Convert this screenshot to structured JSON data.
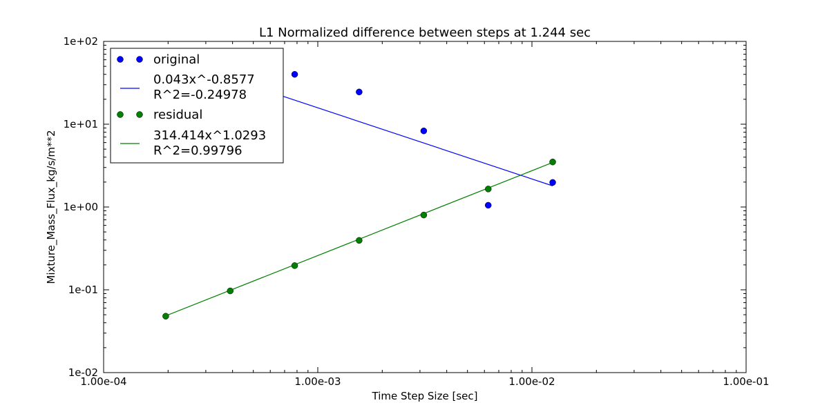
{
  "chart_data": {
    "type": "scatter",
    "title": "L1 Normalized difference between steps at 1.244 sec",
    "xlabel": "Time Step Size [sec]",
    "ylabel": "Mixture_Mass_Flux_kg/s/m**2",
    "xscale": "log",
    "yscale": "log",
    "xlim": [
      0.0001,
      0.1
    ],
    "ylim": [
      0.01,
      100
    ],
    "grid": false,
    "legend_position": "top-left",
    "xticks": [
      {
        "value": 0.0001,
        "label": "1.00e-04"
      },
      {
        "value": 0.001,
        "label": "1.00e-03"
      },
      {
        "value": 0.01,
        "label": "1.00e-02"
      },
      {
        "value": 0.1,
        "label": "1.00e-01"
      }
    ],
    "yticks": [
      {
        "value": 0.01,
        "label": "1e-02"
      },
      {
        "value": 0.1,
        "label": "1e-01"
      },
      {
        "value": 1,
        "label": "1e+00"
      },
      {
        "value": 10,
        "label": "1e+01"
      },
      {
        "value": 100,
        "label": "1e+02"
      }
    ],
    "series": [
      {
        "name": "original",
        "kind": "points",
        "color": "#0000ff",
        "x": [
          0.000195,
          0.00039,
          0.00078,
          0.00156,
          0.003125,
          0.00625,
          0.0125
        ],
        "y": [
          75,
          60,
          40,
          24.5,
          8.3,
          1.05,
          1.98
        ]
      },
      {
        "name": "0.043x^-0.8577\nR^2=-0.24978",
        "kind": "line",
        "color": "#0000ff",
        "x": [
          0.000195,
          0.0125
        ],
        "y": [
          64.3,
          1.8
        ]
      },
      {
        "name": "residual",
        "kind": "points",
        "color": "#007f00",
        "x": [
          0.000195,
          0.00039,
          0.00078,
          0.00156,
          0.003125,
          0.00625,
          0.0125
        ],
        "y": [
          0.048,
          0.097,
          0.196,
          0.395,
          0.8,
          1.65,
          3.5
        ]
      },
      {
        "name": "314.414x^1.0293\nR^2=0.99796",
        "kind": "line",
        "color": "#007f00",
        "x": [
          0.000195,
          0.0125
        ],
        "y": [
          0.0485,
          3.45
        ]
      }
    ]
  }
}
